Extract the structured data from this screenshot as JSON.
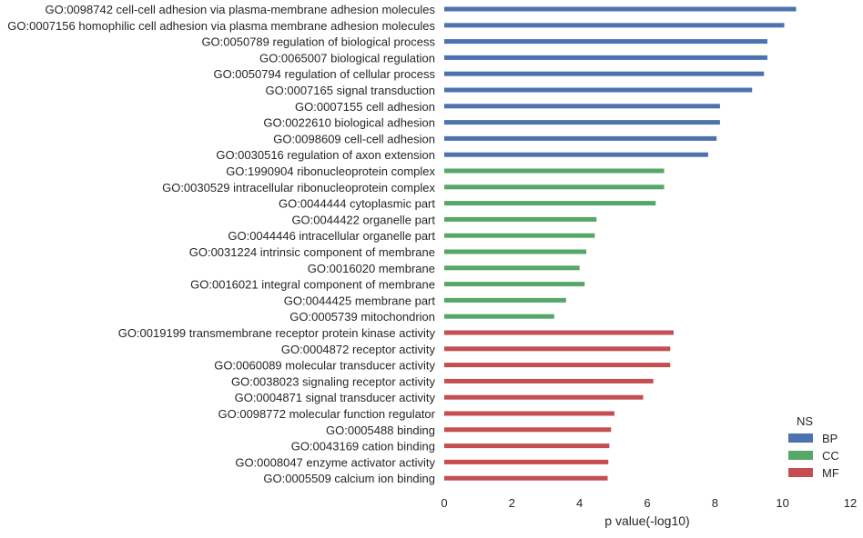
{
  "chart_data": {
    "type": "bar",
    "orientation": "horizontal",
    "xlabel": "p value(-log10)",
    "xlim": [
      0,
      12
    ],
    "xticks": [
      0,
      2,
      4,
      6,
      8,
      10,
      12
    ],
    "grid": false,
    "legend": {
      "title": "NS",
      "placement": "bottom-right",
      "entries": [
        {
          "name": "BP",
          "color": "#4c72b0"
        },
        {
          "name": "CC",
          "color": "#55a868"
        },
        {
          "name": "MF",
          "color": "#c44e52"
        }
      ]
    },
    "categories": [
      "GO:0098742 cell-cell adhesion via plasma-membrane adhesion molecules",
      "GO:0007156 homophilic cell adhesion via plasma membrane adhesion molecules",
      "GO:0050789 regulation of biological process",
      "GO:0065007 biological regulation",
      "GO:0050794 regulation of cellular process",
      "GO:0007165 signal transduction",
      "GO:0007155 cell adhesion",
      "GO:0022610 biological adhesion",
      "GO:0098609 cell-cell adhesion",
      "GO:0030516 regulation of axon extension",
      "GO:1990904 ribonucleoprotein complex",
      "GO:0030529 intracellular ribonucleoprotein complex",
      "GO:0044444 cytoplasmic part",
      "GO:0044422 organelle part",
      "GO:0044446 intracellular organelle part",
      "GO:0031224 intrinsic component of membrane",
      "GO:0016020 membrane",
      "GO:0016021 integral component of membrane",
      "GO:0044425 membrane part",
      "GO:0005739 mitochondrion",
      "GO:0019199 transmembrane receptor protein kinase activity",
      "GO:0004872 receptor activity",
      "GO:0060089 molecular transducer activity",
      "GO:0038023 signaling receptor activity",
      "GO:0004871 signal transducer activity",
      "GO:0098772 molecular function regulator",
      "GO:0005488 binding",
      "GO:0043169 cation binding",
      "GO:0008047 enzyme activator activity",
      "GO:0005509 calcium ion binding"
    ],
    "values": [
      10.4,
      10.05,
      9.55,
      9.55,
      9.45,
      9.1,
      8.15,
      8.15,
      8.05,
      7.8,
      6.5,
      6.5,
      6.25,
      4.5,
      4.45,
      4.2,
      4.0,
      4.15,
      3.6,
      3.25,
      6.78,
      6.68,
      6.68,
      6.18,
      5.88,
      5.03,
      4.93,
      4.88,
      4.85,
      4.83
    ],
    "groups": [
      "BP",
      "BP",
      "BP",
      "BP",
      "BP",
      "BP",
      "BP",
      "BP",
      "BP",
      "BP",
      "CC",
      "CC",
      "CC",
      "CC",
      "CC",
      "CC",
      "CC",
      "CC",
      "CC",
      "CC",
      "MF",
      "MF",
      "MF",
      "MF",
      "MF",
      "MF",
      "MF",
      "MF",
      "MF",
      "MF"
    ]
  }
}
